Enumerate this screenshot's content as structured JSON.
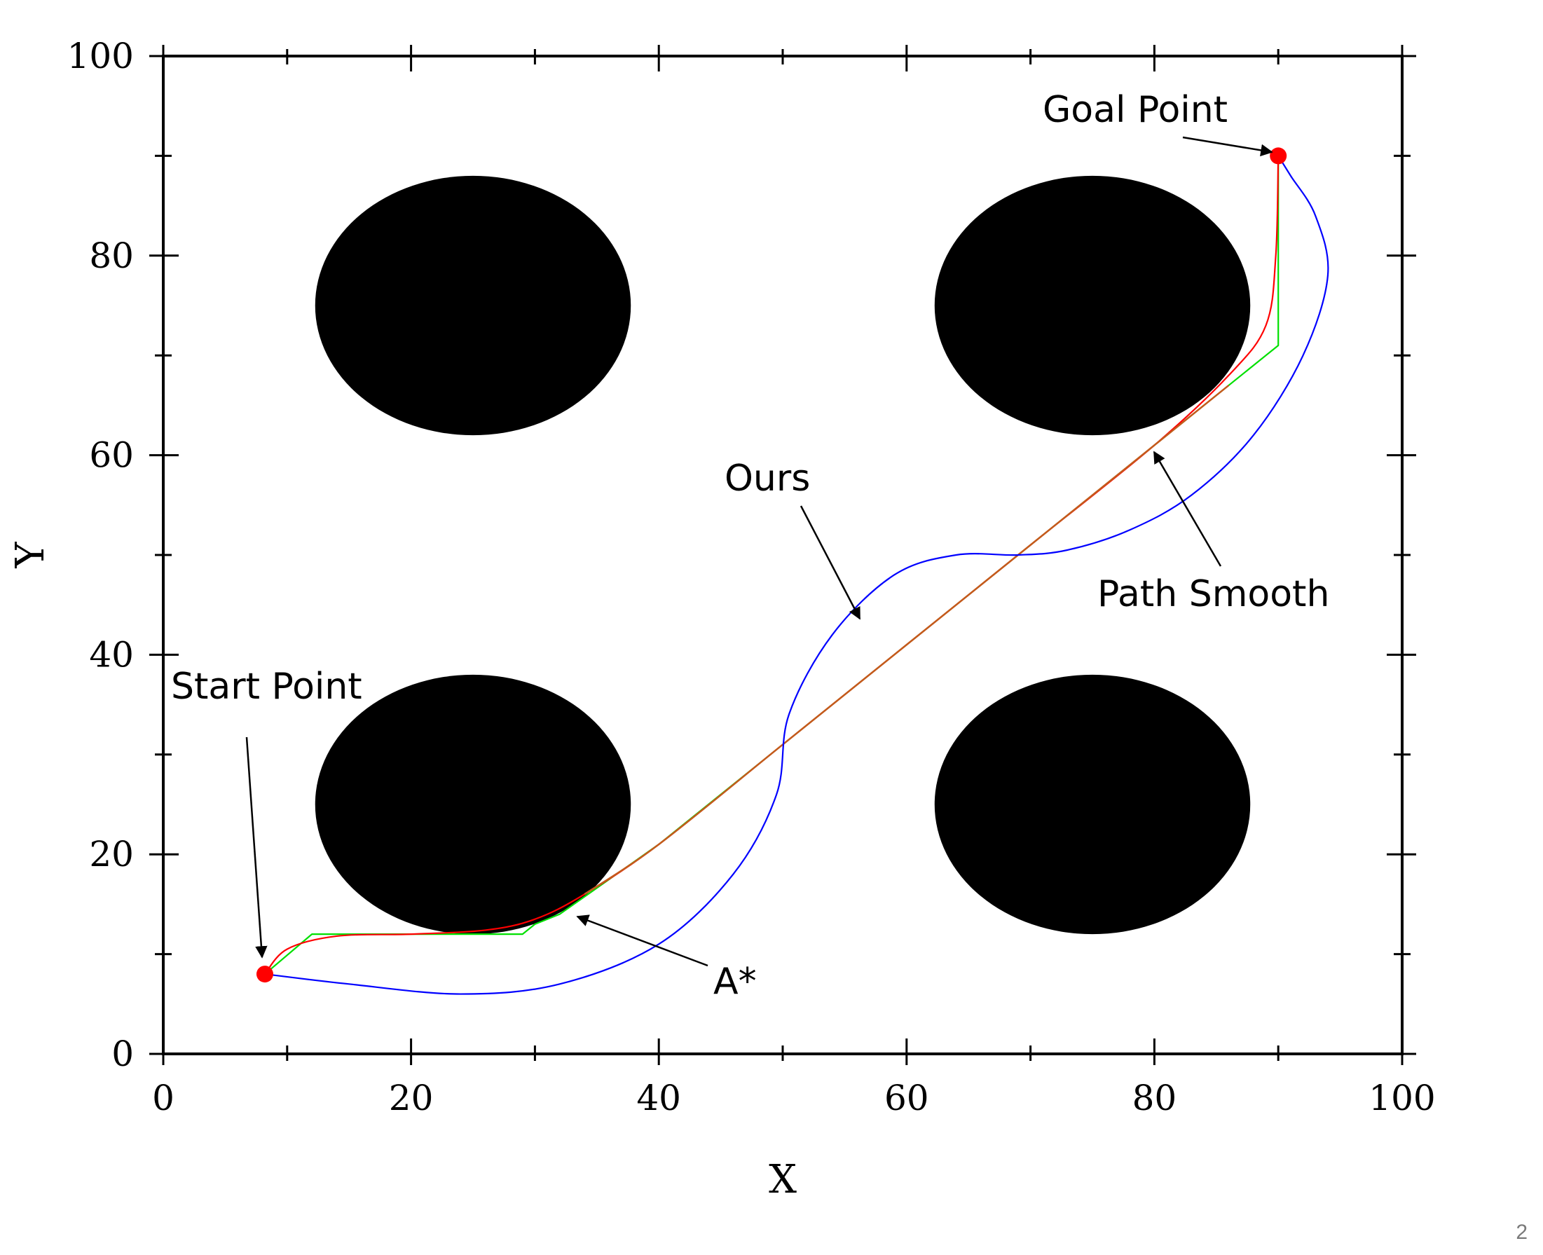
{
  "chart_data": {
    "type": "line",
    "title": "",
    "xlabel": "X",
    "ylabel": "Y",
    "xlim": [
      0,
      100
    ],
    "ylim": [
      0,
      100
    ],
    "xticks": [
      "0",
      "20",
      "40",
      "60",
      "80",
      "100"
    ],
    "yticks": [
      "0",
      "20",
      "40",
      "60",
      "80",
      "100"
    ],
    "grid": false,
    "obstacles": [
      {
        "cx": 25,
        "cy": 75,
        "rx": 13,
        "ry": 13
      },
      {
        "cx": 75,
        "cy": 75,
        "rx": 13,
        "ry": 13
      },
      {
        "cx": 25,
        "cy": 25,
        "rx": 13,
        "ry": 13
      },
      {
        "cx": 75,
        "cy": 25,
        "rx": 13,
        "ry": 13
      }
    ],
    "start": {
      "x": 8.2,
      "y": 8
    },
    "goal": {
      "x": 90,
      "y": 90
    },
    "series": [
      {
        "color": "#00e000",
        "x": [
          8.2,
          12,
          29,
          30,
          32,
          40,
          50,
          60,
          70,
          80,
          90,
          90
        ],
        "y": [
          8,
          12,
          12,
          13,
          14,
          21,
          31,
          41,
          51,
          61,
          71,
          90
        ]
      },
      {
        "color": "#ff0000",
        "x": [
          8.2,
          10,
          14,
          20,
          26,
          30,
          34,
          40,
          50,
          60,
          70,
          80,
          86,
          89,
          89.8,
          90
        ],
        "y": [
          8,
          10.5,
          11.8,
          12,
          12.4,
          13.5,
          16,
          21,
          31,
          41,
          51,
          61,
          68,
          73,
          80,
          90
        ]
      },
      {
        "color": "#c45a1c",
        "x": [
          34,
          40,
          50,
          60,
          70,
          80,
          86
        ],
        "y": [
          16,
          21,
          31,
          41,
          51,
          61,
          67
        ]
      },
      {
        "color": "#0000ff",
        "x": [
          8.2,
          15,
          24,
          32,
          40,
          46,
          49.5,
          50.5,
          54,
          59,
          64,
          69,
          73,
          78,
          83,
          88,
          92,
          94,
          93,
          91,
          90
        ],
        "y": [
          8,
          7,
          6,
          7,
          11,
          18,
          26,
          34,
          42,
          48,
          50,
          50,
          50.5,
          52.5,
          56,
          62,
          70,
          78,
          84,
          88,
          90
        ]
      }
    ],
    "annotations": [
      {
        "text": "Goal Point"
      },
      {
        "text": "Ours"
      },
      {
        "text": "Path Smooth"
      },
      {
        "text": "Start Point"
      },
      {
        "text": "A*"
      }
    ]
  },
  "page_number": "2"
}
